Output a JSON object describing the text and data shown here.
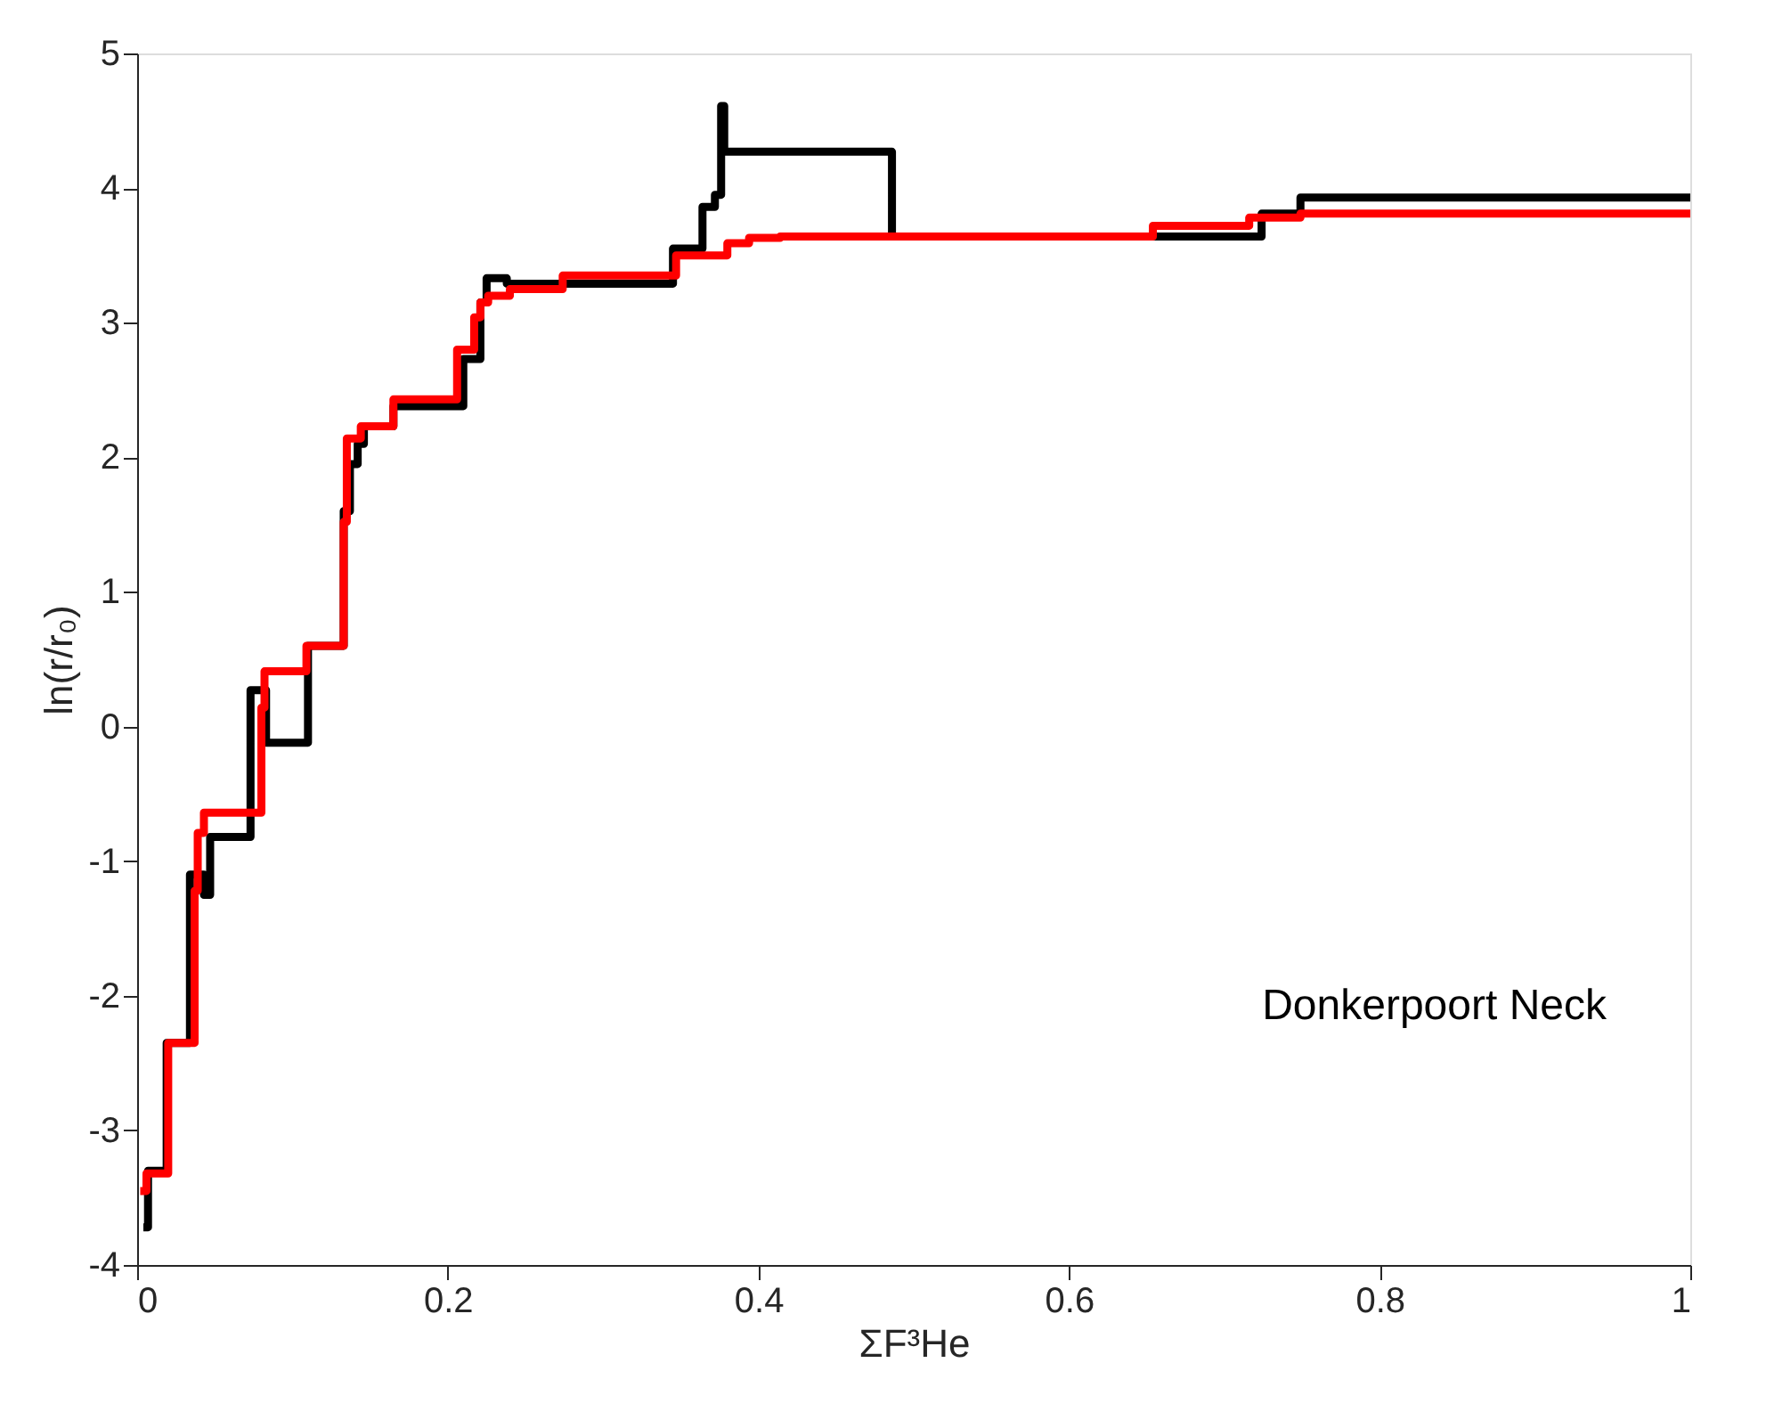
{
  "chart_data": {
    "type": "step",
    "xlabel": "ΣF³He",
    "ylabel": "ln(r/r₀)",
    "xlim": [
      0,
      1
    ],
    "ylim": [
      -4,
      5
    ],
    "xticks": [
      0,
      0.2,
      0.4,
      0.6,
      0.8,
      1
    ],
    "yticks": [
      -4,
      -3,
      -2,
      -1,
      0,
      1,
      2,
      3,
      4,
      5
    ],
    "grid": false,
    "annotations": [
      "Donkerpoort Neck"
    ],
    "series": [
      {
        "color": "#000000",
        "x": [
          0.004,
          0.007,
          0.019,
          0.034,
          0.043,
          0.047,
          0.073,
          0.083,
          0.11,
          0.133,
          0.137,
          0.142,
          0.146,
          0.165,
          0.21,
          0.221,
          0.225,
          0.238,
          0.345,
          0.364,
          0.372,
          0.376,
          0.378,
          0.486,
          0.724,
          0.749,
          1
        ],
        "values": [
          -3.72,
          -3.3,
          -2.35,
          -1.1,
          -1.25,
          -0.82,
          0.27,
          -0.12,
          0.6,
          1.6,
          1.95,
          2.1,
          2.23,
          2.38,
          2.73,
          3.15,
          3.33,
          3.29,
          3.55,
          3.86,
          3.95,
          4.61,
          4.27,
          3.64,
          3.81,
          3.93,
          3.93
        ]
      },
      {
        "color": "#ff0000",
        "x": [
          0.002,
          0.006,
          0.02,
          0.037,
          0.039,
          0.043,
          0.08,
          0.082,
          0.109,
          0.133,
          0.135,
          0.144,
          0.165,
          0.206,
          0.217,
          0.221,
          0.226,
          0.24,
          0.274,
          0.347,
          0.38,
          0.394,
          0.414,
          0.654,
          0.716,
          0.749,
          1
        ],
        "values": [
          -3.45,
          -3.32,
          -2.35,
          -1.22,
          -0.79,
          -0.64,
          0.14,
          0.41,
          0.6,
          1.52,
          2.14,
          2.23,
          2.43,
          2.8,
          3.04,
          3.15,
          3.2,
          3.25,
          3.35,
          3.5,
          3.59,
          3.63,
          3.64,
          3.72,
          3.78,
          3.81,
          3.81
        ]
      }
    ]
  }
}
